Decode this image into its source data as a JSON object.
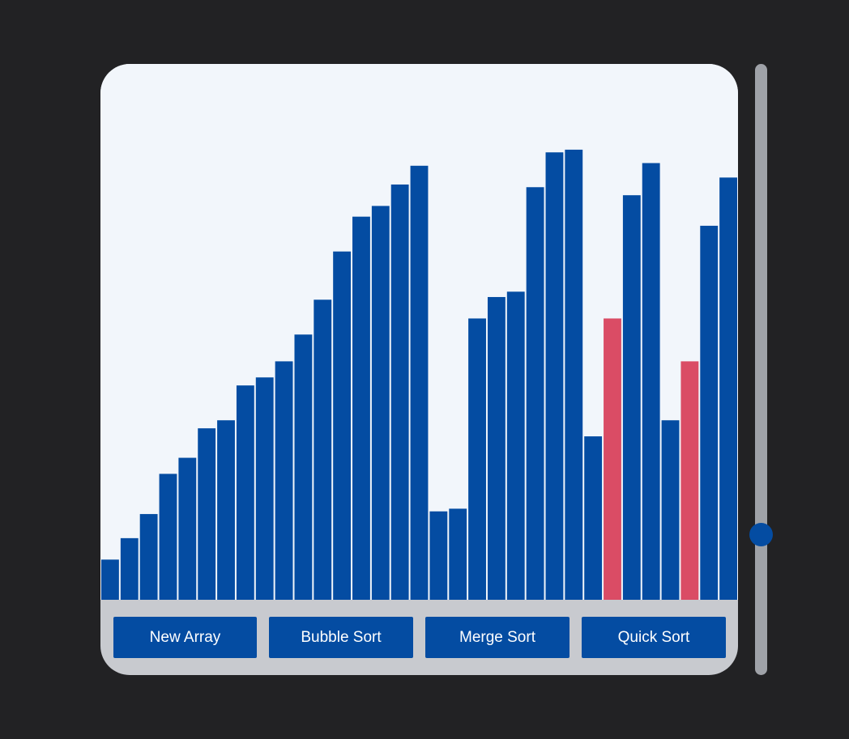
{
  "chart_data": {
    "type": "bar",
    "max_value": 100,
    "values": [
      7.5,
      11.5,
      16,
      23.5,
      26.5,
      32,
      33.5,
      40,
      41.5,
      44.5,
      49.5,
      56,
      65,
      71.5,
      73.5,
      77.5,
      81,
      16.5,
      17,
      52.5,
      56.5,
      57.5,
      77,
      83.5,
      84,
      30.5,
      52.5,
      75.5,
      81.5,
      33.5,
      44.5,
      69.8,
      78.8
    ],
    "highlighted": [
      26,
      30
    ],
    "bar_color": "#044ca2",
    "highlight_color": "#da4c65"
  },
  "controls": {
    "new_array_label": "New Array",
    "bubble_sort_label": "Bubble Sort",
    "merge_sort_label": "Merge Sort",
    "quick_sort_label": "Quick Sort"
  },
  "speed_slider": {
    "value": 0.23
  },
  "colors": {
    "background": "#222224",
    "chart_bg": "#f2f6fb",
    "panel_bg": "#c8cacf",
    "button_bg": "#044ca2",
    "slider_track": "#9fa2a8"
  }
}
